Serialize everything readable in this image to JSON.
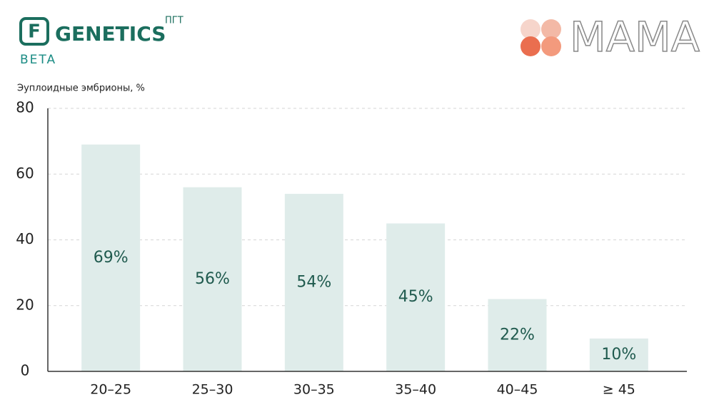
{
  "header": {
    "logo_letter": "F",
    "brand": "GENETICS",
    "brand_sup": "ПГТ",
    "brand_sub": "BETA",
    "partner": "MAMA"
  },
  "chart_data": {
    "type": "bar",
    "y_label": "Эуплоидные эмбрионы, %",
    "categories": [
      "20–25",
      "25–30",
      "30–35",
      "35–40",
      "40–45",
      "≥ 45"
    ],
    "values": [
      69,
      56,
      54,
      45,
      22,
      10
    ],
    "value_labels": [
      "69%",
      "56%",
      "54%",
      "45%",
      "22%",
      "10%"
    ],
    "color": "#dfecea",
    "label_color": "#1f5a4e",
    "ylim": [
      0,
      80
    ],
    "yticks": [
      0,
      20,
      40,
      60,
      80
    ],
    "grid": true
  }
}
